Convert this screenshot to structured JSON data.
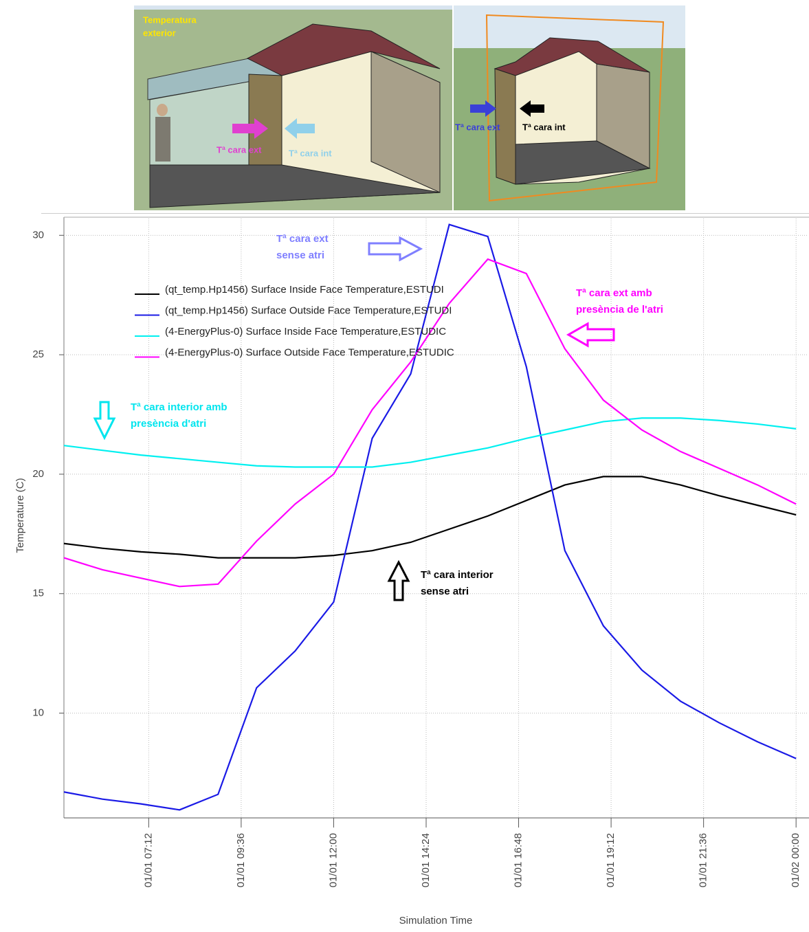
{
  "illustrations": {
    "left": {
      "outside_label": [
        "Temperatura",
        "exterior"
      ],
      "ext_label": "Tª cara ext",
      "int_label": "Tª cara int"
    },
    "right": {
      "ext_label": "Tª cara ext",
      "int_label": "Tª cara int"
    }
  },
  "chart_data": {
    "type": "line",
    "x_label": "Simulation Time",
    "y_label": "Temperature (C)",
    "x": [
      5,
      6,
      7,
      8,
      9,
      10,
      11,
      12,
      13,
      14,
      15,
      16,
      17,
      18,
      19,
      20,
      21,
      22,
      23,
      24
    ],
    "xlim": [
      5,
      24.3
    ],
    "ylim": [
      5.7,
      30.7
    ],
    "xticks": [
      {
        "value": 7.2,
        "label": "01/01 07:12"
      },
      {
        "value": 9.6,
        "label": "01/01 09:36"
      },
      {
        "value": 12,
        "label": "01/01 12:00"
      },
      {
        "value": 14.4,
        "label": "01/01 14:24"
      },
      {
        "value": 16.8,
        "label": "01/01 16:48"
      },
      {
        "value": 19.2,
        "label": "01/01 19:12"
      },
      {
        "value": 21.6,
        "label": "01/01 21:36"
      },
      {
        "value": 24,
        "label": "01/02 00:00"
      }
    ],
    "yticks": [
      10,
      15,
      20,
      25,
      30
    ],
    "grid": true,
    "series": [
      {
        "name": "(qt_temp.Hp1456) Surface Inside Face Temperature,ESTUDI",
        "color": "#000000",
        "values": [
          17.1,
          16.9,
          16.75,
          16.65,
          16.5,
          16.5,
          16.5,
          16.6,
          16.8,
          17.15,
          17.7,
          18.25,
          18.9,
          19.55,
          19.9,
          19.9,
          19.55,
          19.1,
          18.7,
          18.3
        ]
      },
      {
        "name": "(qt_temp.Hp1456) Surface Outside Face Temperature,ESTUDI",
        "color": "#1a1ae6",
        "values": [
          6.7,
          6.4,
          6.2,
          5.95,
          6.6,
          11.06,
          12.6,
          14.65,
          21.5,
          24.2,
          30.45,
          29.95,
          24.5,
          16.8,
          13.65,
          11.8,
          10.5,
          9.6,
          8.8,
          8.1
        ]
      },
      {
        "name": "(4-EnergyPlus-0) Surface Inside Face Temperature,ESTUDIC",
        "color": "#00f0f0",
        "values": [
          21.2,
          21.0,
          20.8,
          20.65,
          20.5,
          20.35,
          20.3,
          20.3,
          20.3,
          20.5,
          20.8,
          21.1,
          21.5,
          21.85,
          22.2,
          22.35,
          22.35,
          22.25,
          22.1,
          21.9
        ]
      },
      {
        "name": "(4-EnergyPlus-0) Surface Outside Face Temperature,ESTUDIC",
        "color": "#ff00ff",
        "values": [
          16.5,
          16.0,
          15.65,
          15.3,
          15.4,
          17.2,
          18.75,
          20.0,
          22.7,
          24.7,
          27.15,
          29.0,
          28.4,
          25.25,
          23.1,
          21.85,
          20.95,
          20.25,
          19.55,
          18.75
        ]
      }
    ],
    "annotations": [
      {
        "text": [
          "Tª cara ext",
          "sense atri"
        ],
        "color": "#7f7fff"
      },
      {
        "text": [
          "Tª cara ext amb",
          "presència de l'atri"
        ],
        "color": "#ff00ff"
      },
      {
        "text": [
          "Tª cara interior amb",
          "presència d'atri"
        ],
        "color": "#00e5ee"
      },
      {
        "text": [
          "Tª cara interior",
          "sense atri"
        ],
        "color": "#000000"
      }
    ]
  }
}
